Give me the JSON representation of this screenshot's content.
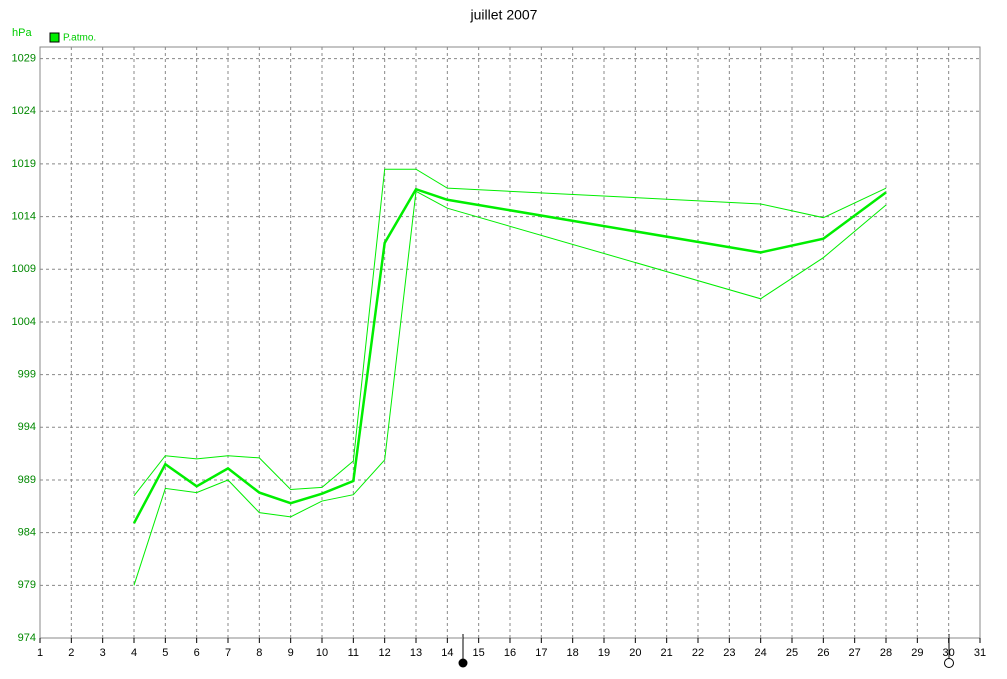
{
  "chart_data": {
    "type": "line",
    "title": "juillet 2007",
    "y_label": "hPa",
    "x": [
      4,
      5,
      6,
      7,
      8,
      9,
      10,
      11,
      12,
      13,
      14,
      24,
      26,
      28
    ],
    "series": [
      {
        "name": "P.atmo.",
        "color": "#00ee00",
        "width": 2.5,
        "values": [
          984.9,
          990.5,
          988.4,
          990.1,
          987.8,
          986.8,
          987.7,
          988.9,
          1011.5,
          1016.6,
          1015.6,
          1010.6,
          1011.9,
          1016.3
        ]
      },
      {
        "color": "#00ee00",
        "width": 1,
        "values": [
          987.5,
          991.3,
          991.0,
          991.3,
          991.1,
          988.1,
          988.3,
          990.8,
          1018.5,
          1018.5,
          1016.7,
          1015.2,
          1013.9,
          1016.7
        ]
      },
      {
        "color": "#00ee00",
        "width": 1,
        "values": [
          979.0,
          988.2,
          987.8,
          989.0,
          985.9,
          985.5,
          987.0,
          987.6,
          990.9,
          1016.4,
          1014.8,
          1006.2,
          1010.1,
          1015.1
        ]
      }
    ],
    "xlim": [
      1,
      31
    ],
    "xticks": [
      1,
      2,
      3,
      4,
      5,
      6,
      7,
      8,
      9,
      10,
      11,
      12,
      13,
      14,
      15,
      16,
      17,
      18,
      19,
      20,
      21,
      22,
      23,
      24,
      25,
      26,
      27,
      28,
      29,
      30,
      31
    ],
    "ylim": [
      974,
      1030.1
    ],
    "yticks": [
      974,
      979,
      984,
      989,
      994,
      999,
      1004,
      1009,
      1014,
      1019,
      1024,
      1029
    ],
    "grid": true
  }
}
